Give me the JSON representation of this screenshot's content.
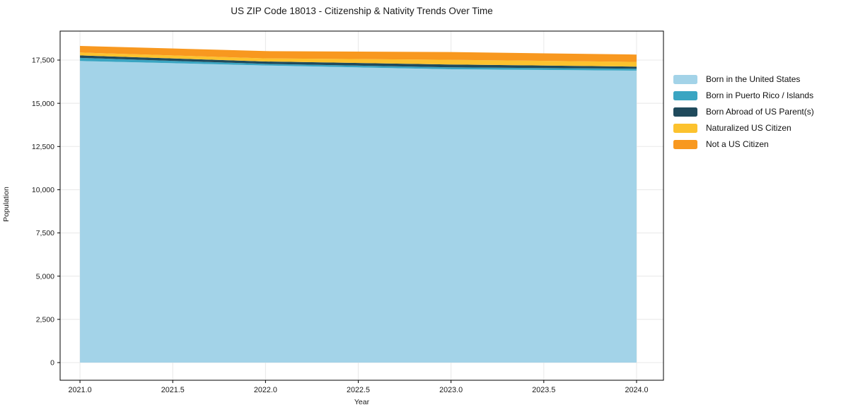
{
  "chart_data": {
    "type": "area",
    "stacked": true,
    "title": "US ZIP Code 18013 - Citizenship & Nativity Trends Over Time",
    "xlabel": "Year",
    "ylabel": "Population",
    "x": [
      2021,
      2022,
      2023,
      2024
    ],
    "series": [
      {
        "name": "Born in the United States",
        "color": "#a3d3e8",
        "values": [
          17450,
          17190,
          16970,
          16890
        ]
      },
      {
        "name": "Born in Puerto Rico / Islands",
        "color": "#3aa5c2",
        "values": [
          180,
          90,
          110,
          110
        ]
      },
      {
        "name": "Born Abroad of US Parent(s)",
        "color": "#1f4a5c",
        "values": [
          140,
          140,
          165,
          125
        ]
      },
      {
        "name": "Naturalized US Citizen",
        "color": "#fcc22e",
        "values": [
          170,
          180,
          270,
          270
        ]
      },
      {
        "name": "Not a US Citizen",
        "color": "#f8981f",
        "values": [
          380,
          420,
          450,
          425
        ]
      }
    ],
    "xlim": [
      2020.893,
      2024.145
    ],
    "ylim": [
      -1022,
      19177
    ],
    "x_ticks": [
      {
        "v": 2021.0,
        "label": "2021.0"
      },
      {
        "v": 2021.5,
        "label": "2021.5"
      },
      {
        "v": 2022.0,
        "label": "2022.0"
      },
      {
        "v": 2022.5,
        "label": "2022.5"
      },
      {
        "v": 2023.0,
        "label": "2023.0"
      },
      {
        "v": 2023.5,
        "label": "2023.5"
      },
      {
        "v": 2024.0,
        "label": "2024.0"
      }
    ],
    "y_ticks": [
      {
        "v": 0,
        "label": "0"
      },
      {
        "v": 2500,
        "label": "2,500"
      },
      {
        "v": 5000,
        "label": "5,000"
      },
      {
        "v": 7500,
        "label": "7,500"
      },
      {
        "v": 10000,
        "label": "10,000"
      },
      {
        "v": 12500,
        "label": "12,500"
      },
      {
        "v": 15000,
        "label": "15,000"
      },
      {
        "v": 17500,
        "label": "17,500"
      }
    ],
    "grid": true,
    "grid_color": "#e8e8e8",
    "spine_color": "#000000",
    "tick_label_color": "#1a1a1a",
    "legend_position": "outside-right",
    "background": "#ffffff"
  }
}
